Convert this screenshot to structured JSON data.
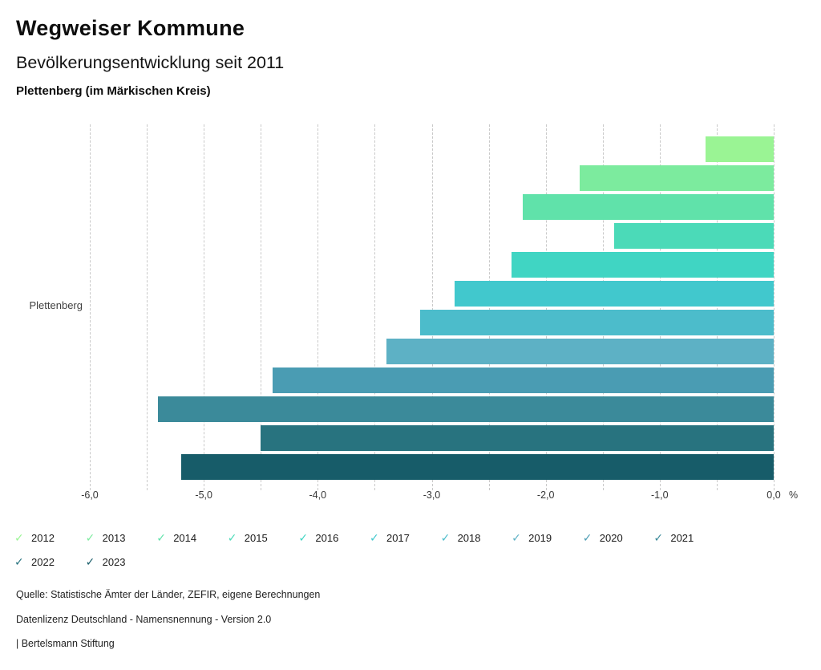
{
  "header": {
    "title": "Wegweiser Kommune",
    "subtitle": "Bevölkerungsentwicklung seit 2011",
    "region": "Plettenberg (im Märkischen Kreis)"
  },
  "chart_data": {
    "type": "bar",
    "orientation": "horizontal",
    "group_label": "Plettenberg",
    "categories": [
      "2012",
      "2013",
      "2014",
      "2015",
      "2016",
      "2017",
      "2018",
      "2019",
      "2020",
      "2021",
      "2022",
      "2023"
    ],
    "values": [
      -0.6,
      -1.7,
      -2.2,
      -1.4,
      -2.3,
      -2.8,
      -3.1,
      -3.4,
      -4.4,
      -5.4,
      -4.5,
      -5.2
    ],
    "colors": [
      "#9AF494",
      "#7CEB9E",
      "#60E2AA",
      "#4BDAB8",
      "#40D5C3",
      "#41C8CD",
      "#4CBCCB",
      "#5DB1C5",
      "#4A9CB3",
      "#3B8A9A",
      "#28737F",
      "#175C69"
    ],
    "xlim": [
      -6.0,
      0.0
    ],
    "gridline_step": 0.5,
    "x_tick_values": [
      -6,
      -5,
      -4,
      -3,
      -2,
      -1,
      0
    ],
    "x_ticks": [
      "-6,0",
      "-5,0",
      "-4,0",
      "-3,0",
      "-2,0",
      "-1,0",
      "0,0"
    ],
    "axis_unit_label": "%",
    "grid": true,
    "legend_position": "bottom",
    "legend_check_icon": "✓"
  },
  "footer": {
    "source": "Quelle: Statistische Ämter der Länder, ZEFIR, eigene Berechnungen",
    "license": "Datenlizenz Deutschland - Namensnennung - Version 2.0",
    "attribution": "| Bertelsmann Stiftung"
  }
}
